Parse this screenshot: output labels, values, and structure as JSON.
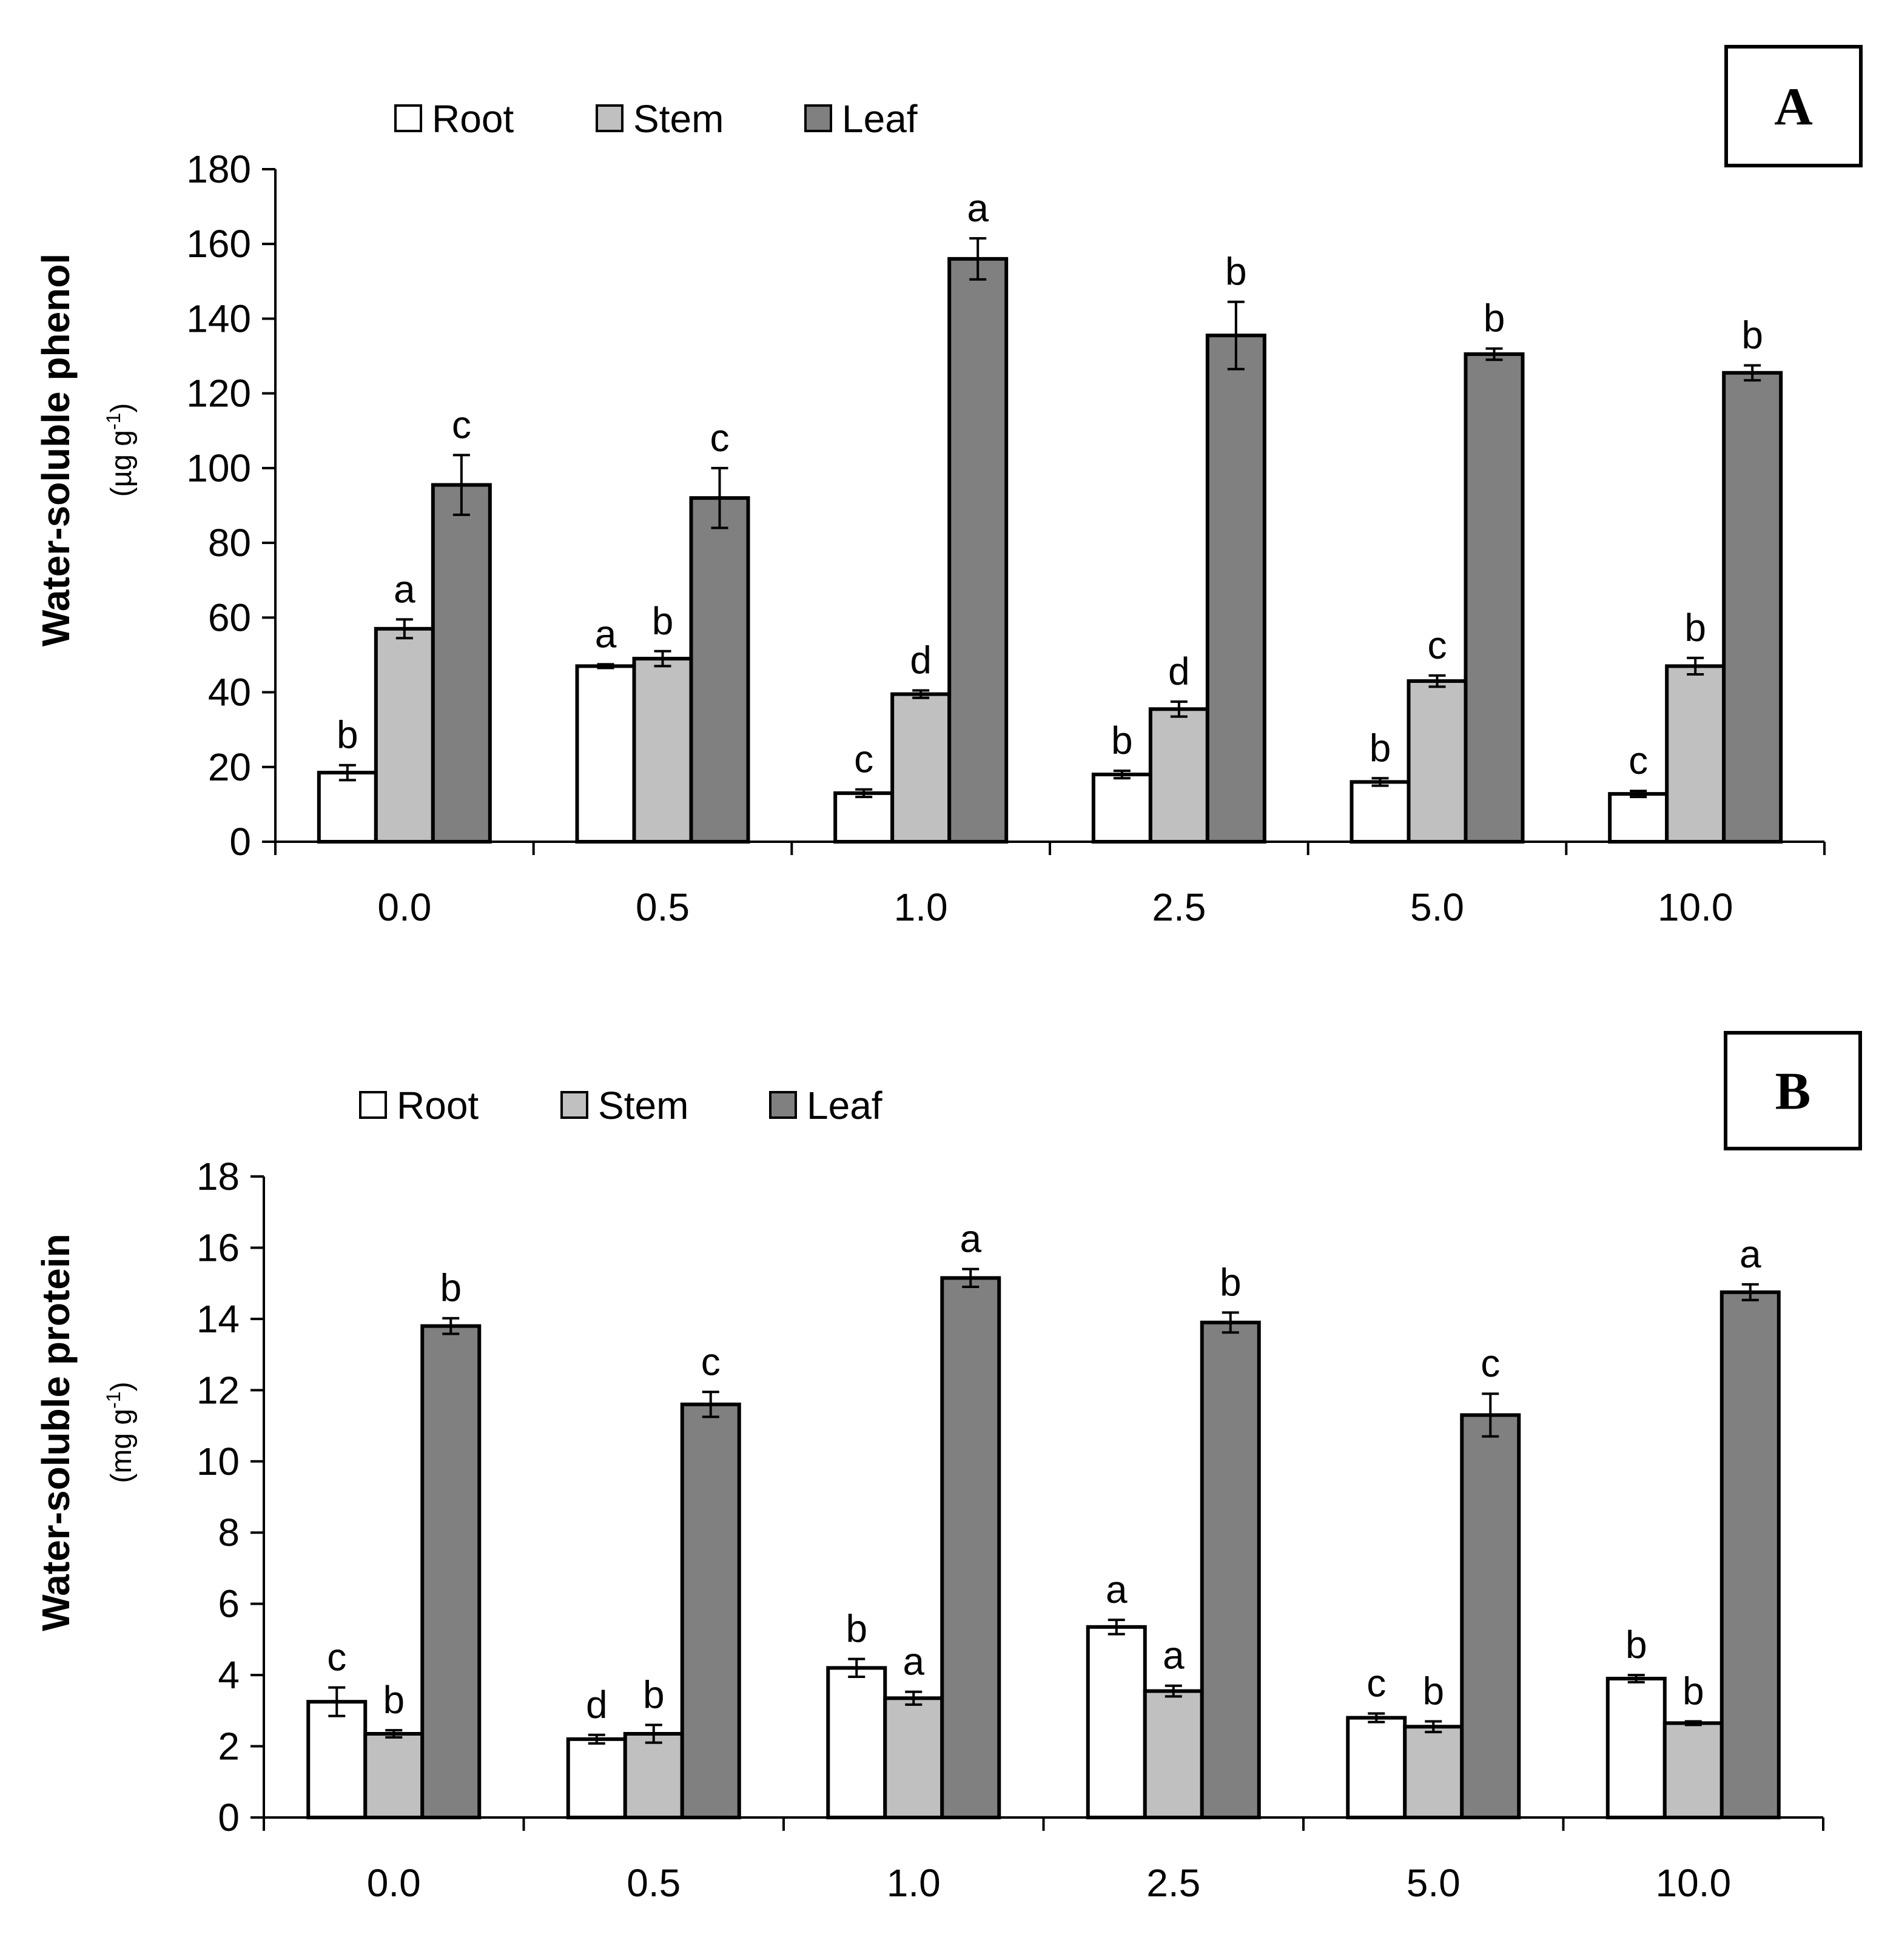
{
  "chart_data": [
    {
      "type": "bar",
      "panel_label": "A",
      "ylabel": "Water-soluble phenol",
      "ylabel_units": "(µg g",
      "ylabel_units_sup": "-1",
      "ylabel_units_close": ")",
      "xlabel": "",
      "ylim": [
        0,
        180
      ],
      "yticks": [
        "0",
        "20",
        "40",
        "60",
        "80",
        "100",
        "120",
        "140",
        "160",
        "180"
      ],
      "categories": [
        "0.0",
        "0.5",
        "1.0",
        "2.5",
        "5.0",
        "10.0"
      ],
      "legend_position": "top-left",
      "series": [
        {
          "name": "Root",
          "color": "#ffffff",
          "values": [
            18.5,
            47,
            13,
            18,
            16,
            12.8
          ],
          "errors": [
            2,
            0.5,
            1,
            1,
            1,
            0.8
          ],
          "letters": [
            "b",
            "a",
            "c",
            "b",
            "b",
            "c"
          ]
        },
        {
          "name": "Stem",
          "color": "#c0c0c0",
          "values": [
            57,
            49,
            39.5,
            35.5,
            43,
            47
          ],
          "errors": [
            2.5,
            2,
            1,
            2,
            1.5,
            2.2
          ],
          "letters": [
            "a",
            "b",
            "d",
            "d",
            "c",
            "b"
          ]
        },
        {
          "name": "Leaf",
          "color": "#808080",
          "values": [
            95.5,
            92,
            156,
            135.5,
            130.5,
            125.5
          ],
          "errors": [
            8,
            8,
            5.5,
            9,
            1.5,
            2
          ],
          "letters": [
            "c",
            "c",
            "a",
            "b",
            "b",
            "b"
          ]
        }
      ]
    },
    {
      "type": "bar",
      "panel_label": "B",
      "ylabel": "Water-soluble protein",
      "ylabel_units": "(mg g",
      "ylabel_units_sup": "-1",
      "ylabel_units_close": ")",
      "xlabel": "",
      "ylim": [
        0,
        18
      ],
      "yticks": [
        "0",
        "2",
        "4",
        "6",
        "8",
        "10",
        "12",
        "14",
        "16",
        "18"
      ],
      "categories": [
        "0.0",
        "0.5",
        "1.0",
        "2.5",
        "5.0",
        "10.0"
      ],
      "legend_position": "top-left",
      "series": [
        {
          "name": "Root",
          "color": "#ffffff",
          "values": [
            3.25,
            2.2,
            4.2,
            5.35,
            2.8,
            3.9
          ],
          "errors": [
            0.4,
            0.12,
            0.25,
            0.2,
            0.12,
            0.1
          ],
          "letters": [
            "c",
            "d",
            "b",
            "a",
            "c",
            "b"
          ]
        },
        {
          "name": "Stem",
          "color": "#c0c0c0",
          "values": [
            2.35,
            2.35,
            3.35,
            3.55,
            2.55,
            2.65
          ],
          "errors": [
            0.1,
            0.25,
            0.18,
            0.15,
            0.15,
            0.05
          ],
          "letters": [
            "b",
            "b",
            "a",
            "a",
            "b",
            "b"
          ]
        },
        {
          "name": "Leaf",
          "color": "#808080",
          "values": [
            13.8,
            11.6,
            15.15,
            13.9,
            11.3,
            14.75
          ],
          "errors": [
            0.22,
            0.35,
            0.25,
            0.28,
            0.6,
            0.22
          ],
          "letters": [
            "b",
            "c",
            "a",
            "b",
            "c",
            "a"
          ]
        }
      ]
    }
  ]
}
